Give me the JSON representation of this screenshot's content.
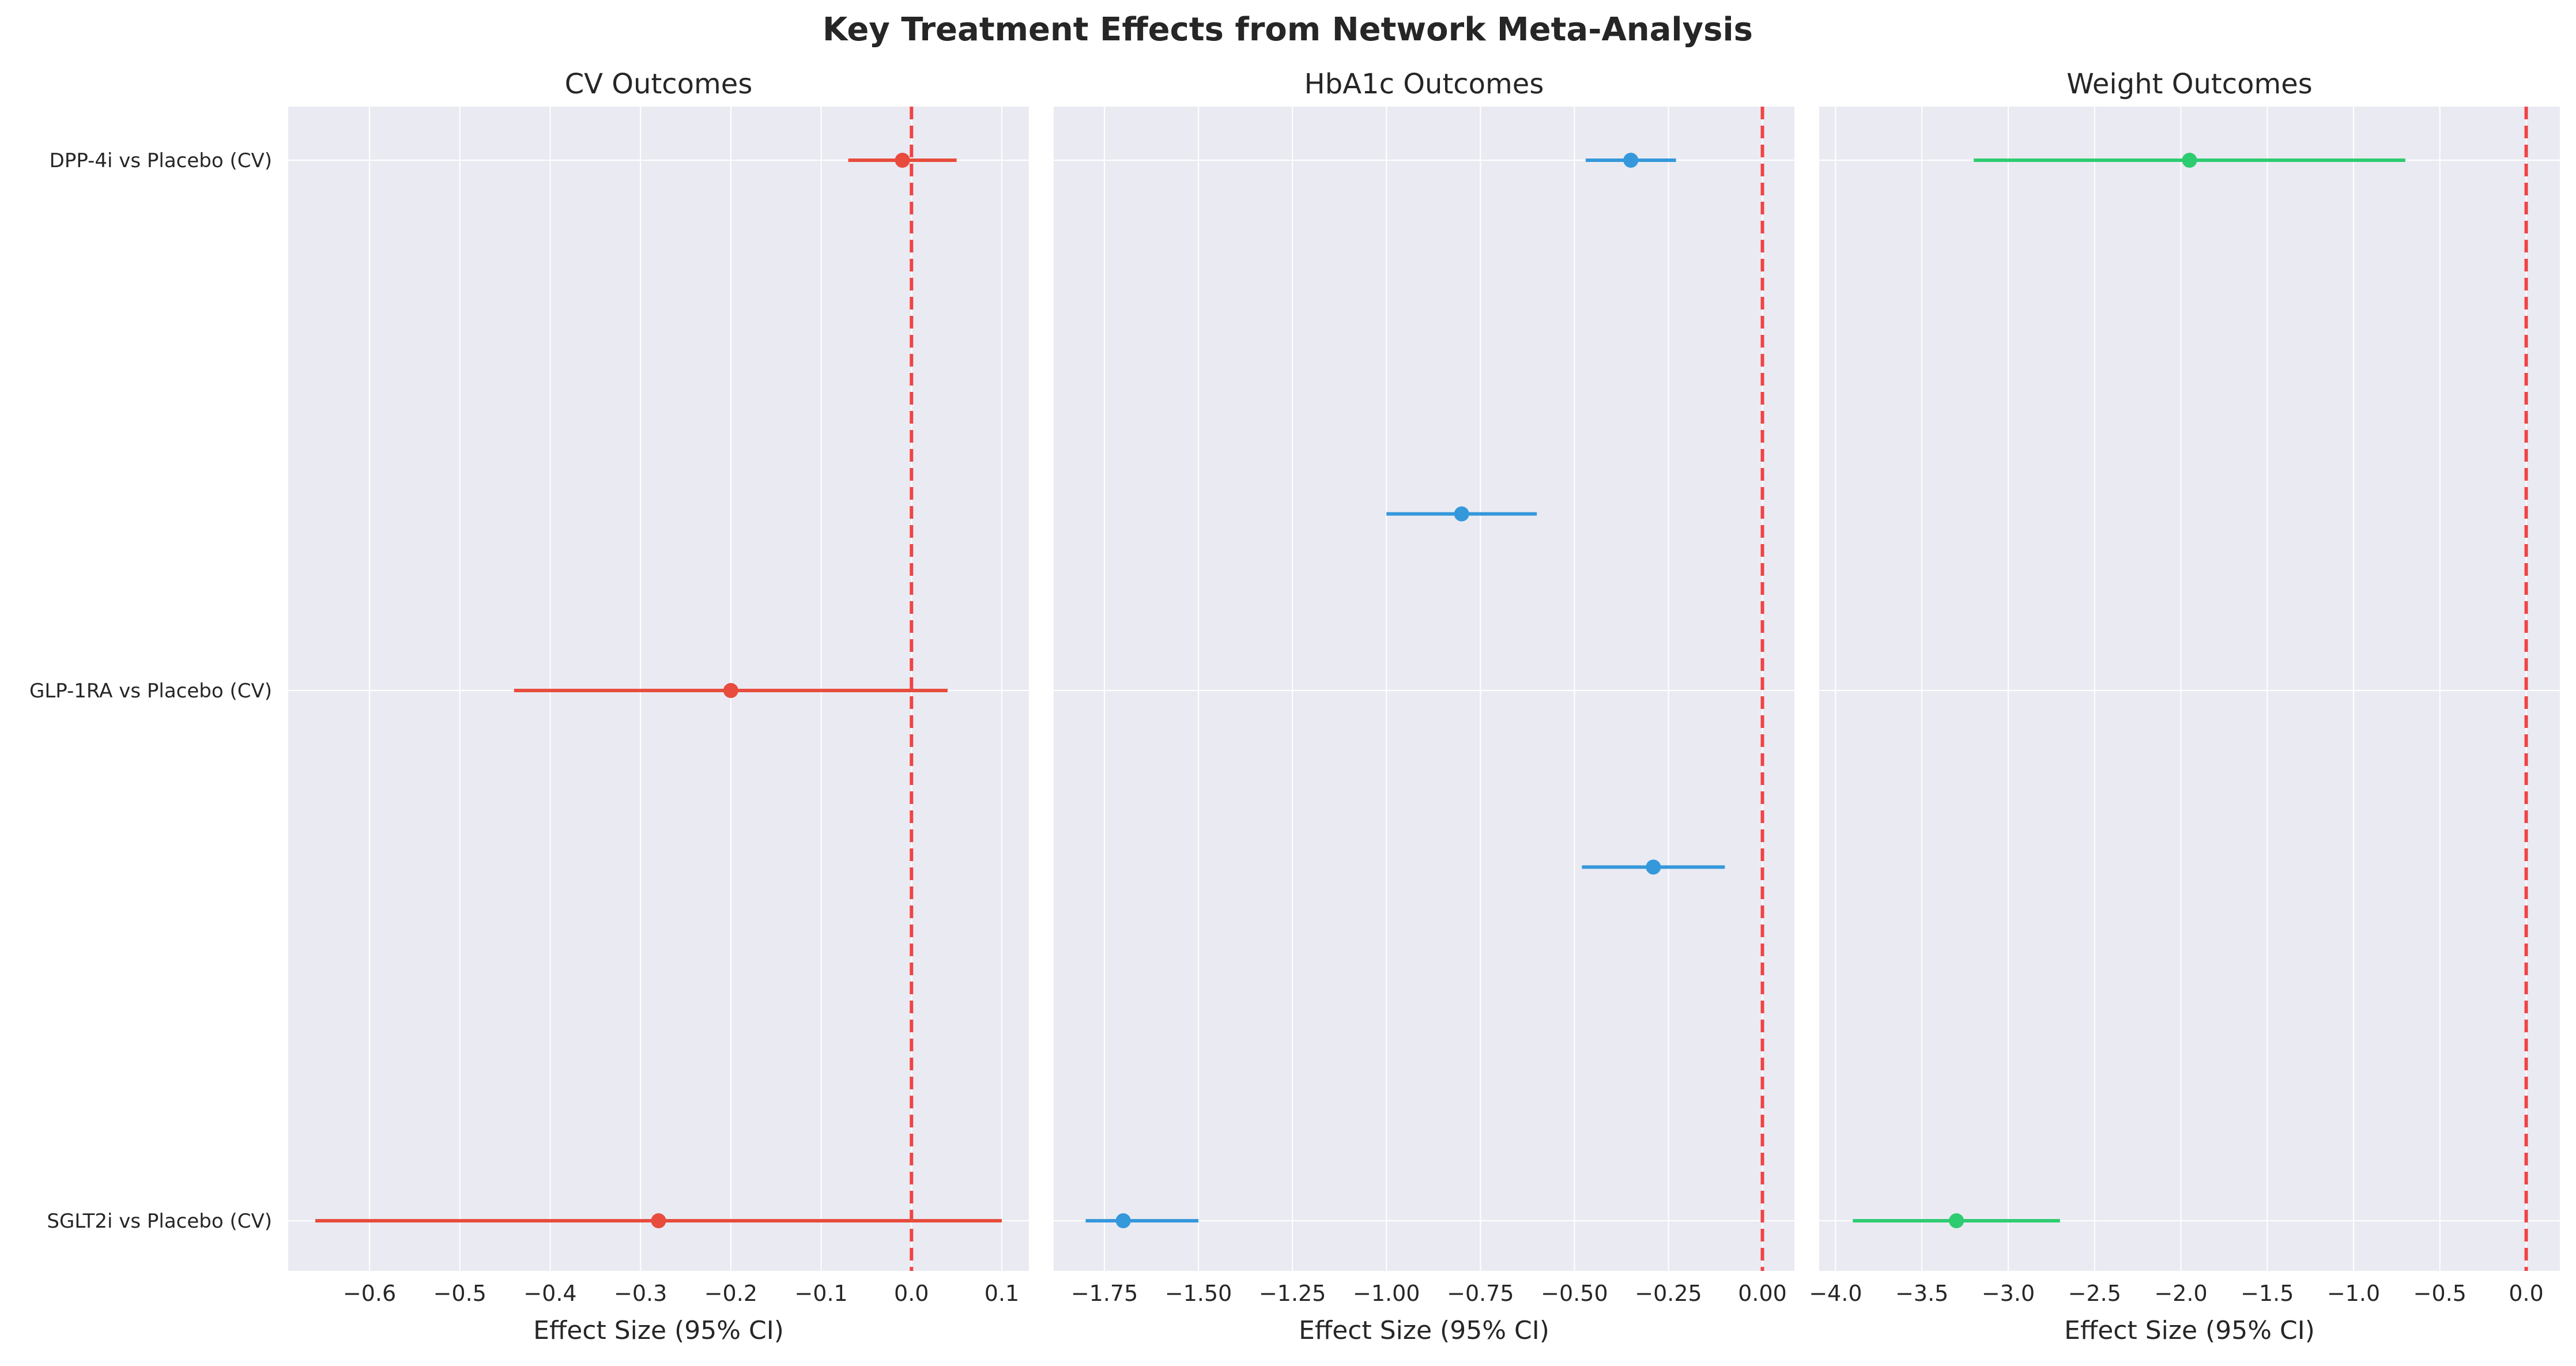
{
  "figure": {
    "title": "Key Treatment Effects from Network Meta-Analysis"
  },
  "chart_data": [
    {
      "type": "scatter",
      "title": "CV Outcomes",
      "xlabel": "Effect Size (95% CI)",
      "ylabel": "",
      "xlim": [
        -0.69,
        0.13
      ],
      "xticks": [
        -0.6,
        -0.5,
        -0.4,
        -0.3,
        -0.2,
        -0.1,
        0.0,
        0.1
      ],
      "tick_decimals": 1,
      "color": "#e74c3c",
      "reference_line": {
        "x": 0,
        "color": "#f03b3b",
        "style": "dashed"
      },
      "grid": true,
      "categories": [
        "DPP-4i vs Placebo (CV)",
        "GLP-1RA vs Placebo (CV)",
        "SGLT2i vs Placebo (CV)"
      ],
      "points": [
        {
          "y": 0,
          "estimate": -0.01,
          "ci_low": -0.07,
          "ci_high": 0.05
        },
        {
          "y": 1,
          "estimate": -0.2,
          "ci_low": -0.44,
          "ci_high": 0.04
        },
        {
          "y": 2,
          "estimate": -0.28,
          "ci_low": -0.66,
          "ci_high": 0.1
        }
      ]
    },
    {
      "type": "scatter",
      "title": "HbA1c Outcomes",
      "xlabel": "Effect Size (95% CI)",
      "ylabel": "",
      "xlim": [
        -1.885,
        0.085
      ],
      "xticks": [
        -1.75,
        -1.5,
        -1.25,
        -1.0,
        -0.75,
        -0.5,
        -0.25,
        0.0
      ],
      "tick_decimals": 2,
      "color": "#3498db",
      "reference_line": {
        "x": 0,
        "color": "#f03b3b",
        "style": "dashed"
      },
      "grid": true,
      "points": [
        {
          "y": 0,
          "estimate": -0.35,
          "ci_low": -0.47,
          "ci_high": -0.23
        },
        {
          "y": 0.667,
          "estimate": -0.8,
          "ci_low": -1.0,
          "ci_high": -0.6
        },
        {
          "y": 1.333,
          "estimate": -0.29,
          "ci_low": -0.48,
          "ci_high": -0.1
        },
        {
          "y": 2,
          "estimate": -1.7,
          "ci_low": -1.8,
          "ci_high": -1.5
        }
      ]
    },
    {
      "type": "scatter",
      "title": "Weight Outcomes",
      "xlabel": "Effect Size (95% CI)",
      "ylabel": "",
      "xlim": [
        -4.095,
        0.195
      ],
      "xticks": [
        -4.0,
        -3.5,
        -3.0,
        -2.5,
        -2.0,
        -1.5,
        -1.0,
        -0.5,
        0.0
      ],
      "tick_decimals": 1,
      "color": "#2ecc71",
      "reference_line": {
        "x": 0,
        "color": "#f03b3b",
        "style": "dashed"
      },
      "grid": true,
      "points": [
        {
          "y": 0,
          "estimate": -1.95,
          "ci_low": -3.2,
          "ci_high": -0.7
        },
        {
          "y": 2,
          "estimate": -3.3,
          "ci_low": -3.9,
          "ci_high": -2.7
        }
      ]
    }
  ]
}
